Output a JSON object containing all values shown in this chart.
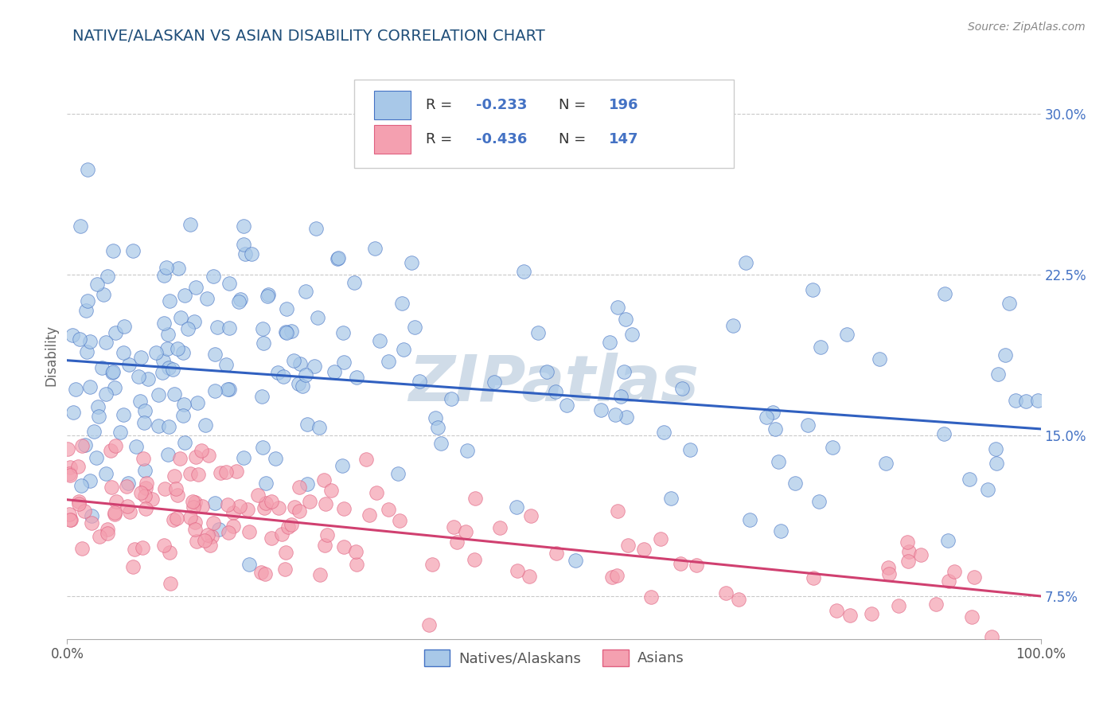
{
  "title": "NATIVE/ALASKAN VS ASIAN DISABILITY CORRELATION CHART",
  "source": "Source: ZipAtlas.com",
  "ylabel": "Disability",
  "xlim": [
    0,
    100
  ],
  "ylim": [
    5.5,
    32.0
  ],
  "yticks": [
    7.5,
    15.0,
    22.5,
    30.0
  ],
  "xticks": [
    0,
    100
  ],
  "xtick_labels": [
    "0.0%",
    "100.0%"
  ],
  "ytick_labels": [
    "7.5%",
    "15.0%",
    "22.5%",
    "30.0%"
  ],
  "blue_fill": "#a8c8e8",
  "blue_edge": "#4472c4",
  "pink_fill": "#f4a0b0",
  "pink_edge": "#e06080",
  "blue_line_color": "#3060c0",
  "pink_line_color": "#d04070",
  "legend_label_blue": "Natives/Alaskans",
  "legend_label_pink": "Asians",
  "blue_R": -0.233,
  "blue_N": 196,
  "pink_R": -0.436,
  "pink_N": 147,
  "blue_intercept": 18.5,
  "blue_slope": -0.032,
  "pink_intercept": 12.0,
  "pink_slope": -0.045,
  "ytick_color": "#4472c4",
  "title_color": "#1f4e79",
  "watermark_color": "#d0dce8",
  "background_color": "#ffffff",
  "grid_color": "#bbbbbb",
  "legend_text_color": "#333333",
  "legend_value_color": "#4472c4"
}
